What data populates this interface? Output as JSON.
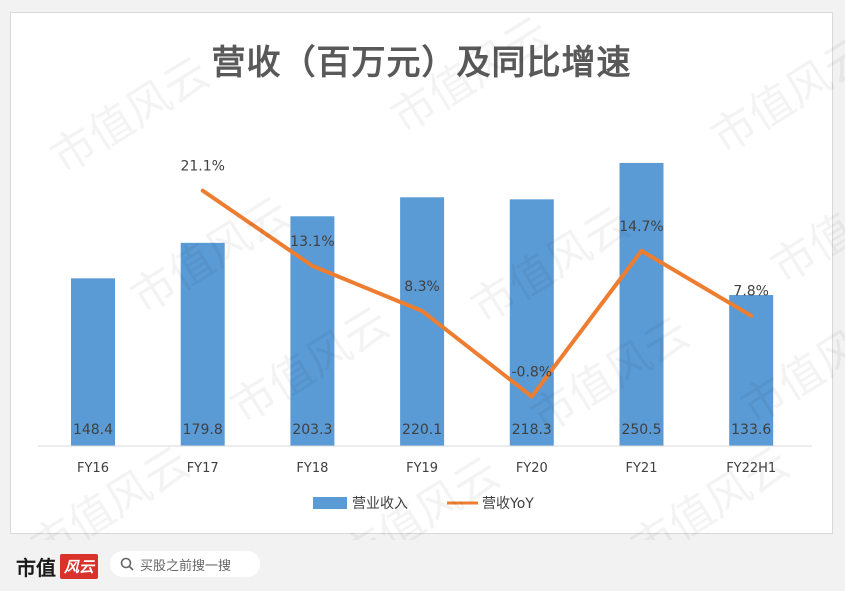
{
  "title": "营收（百万元）及同比增速",
  "legend": {
    "bar_label": "营业收入",
    "line_label": "营收YoY"
  },
  "colors": {
    "bar": "#5b9bd5",
    "line": "#ed7d31",
    "text": "#404040"
  },
  "watermark_text": "市值风云",
  "footer": {
    "brand": "市值",
    "brand_badge": "风云",
    "search_placeholder": "买股之前搜一搜",
    "search_icon": "search-icon"
  },
  "chart_data": {
    "type": "bar",
    "categories": [
      "FY16",
      "FY17",
      "FY18",
      "FY19",
      "FY20",
      "FY21",
      "FY22H1"
    ],
    "series": [
      {
        "name": "营业收入",
        "type": "bar",
        "values": [
          148.4,
          179.8,
          203.3,
          220.1,
          218.3,
          250.5,
          133.6
        ],
        "labels": [
          "148.4",
          "179.8",
          "203.3",
          "220.1",
          "218.3",
          "250.5",
          "133.6"
        ]
      },
      {
        "name": "营收YoY",
        "type": "line",
        "values": [
          null,
          21.1,
          13.1,
          8.3,
          -0.8,
          14.7,
          7.8
        ],
        "labels": [
          "",
          "21.1%",
          "13.1%",
          "8.3%",
          "-0.8%",
          "14.7%",
          "7.8%"
        ]
      }
    ],
    "title": "营收（百万元）及同比增速",
    "ylim_bar": [
      0,
      300
    ],
    "ylim_line": [
      -3,
      25
    ],
    "legend_position": "bottom",
    "grid": false
  }
}
